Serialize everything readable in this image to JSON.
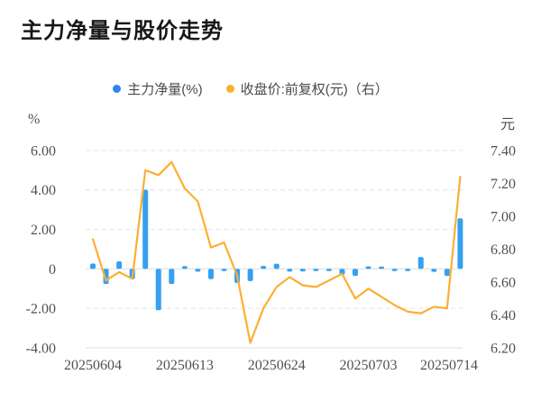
{
  "header": {
    "title": "主力净量与股价走势"
  },
  "colors": {
    "bar_blue": "#34A0F2",
    "legend_dot_blue": "#2E86EC",
    "line_yellow": "#FBAF32",
    "grid_dashed": "#E9E9EC",
    "grid_solid": "#E3E6E9",
    "tick_text": "#4A5259",
    "title_text": "#171717"
  },
  "chart_data": {
    "type": "bar",
    "subtype": "bar+line combo, dual y-axis",
    "title": "主力净量与股价走势",
    "point_count": 29,
    "series": [
      {
        "name": "主力净量(%)",
        "type": "bar",
        "axis": "left",
        "color": "#34A0F2",
        "values": [
          0.27,
          -0.77,
          0.38,
          -0.52,
          4.01,
          -2.1,
          -0.77,
          0.14,
          -0.14,
          -0.52,
          -0.08,
          -0.71,
          -0.62,
          0.15,
          0.26,
          -0.14,
          -0.13,
          -0.1,
          -0.05,
          -0.3,
          -0.36,
          0.13,
          0.1,
          -0.06,
          -0.08,
          0.6,
          -0.15,
          -0.36,
          2.56
        ]
      },
      {
        "name": "收盘价:前复权(元)（右）",
        "type": "line",
        "axis": "right",
        "color": "#FBAF32",
        "values": [
          6.86,
          6.61,
          6.66,
          6.62,
          7.28,
          7.25,
          7.33,
          7.17,
          7.09,
          6.81,
          6.84,
          6.64,
          6.23,
          6.44,
          6.57,
          6.63,
          6.58,
          6.57,
          6.61,
          6.65,
          6.5,
          6.56,
          6.51,
          6.46,
          6.42,
          6.41,
          6.45,
          6.44,
          7.24
        ]
      }
    ],
    "x_tick_labels": [
      {
        "index": 0,
        "label": "20250604"
      },
      {
        "index": 7,
        "label": "20250613"
      },
      {
        "index": 14,
        "label": "20250624"
      },
      {
        "index": 21,
        "label": "20250703"
      },
      {
        "index": 28,
        "label": "20250714"
      }
    ],
    "left_axis": {
      "unit": "%",
      "min": -4.0,
      "max": 6.0,
      "tick_step": 2.0,
      "ticks": [
        "6.00",
        "4.00",
        "2.00",
        "0",
        "-2.00",
        "-4.00"
      ]
    },
    "right_axis": {
      "unit": "元",
      "min": 6.2,
      "max": 7.4,
      "tick_step": 0.2,
      "ticks": [
        "7.40",
        "7.20",
        "7.00",
        "6.80",
        "6.60",
        "6.40",
        "6.20"
      ]
    },
    "grid": "horizontal dashed lines; zero line and bottom axis solid",
    "legend_position": "top center"
  }
}
